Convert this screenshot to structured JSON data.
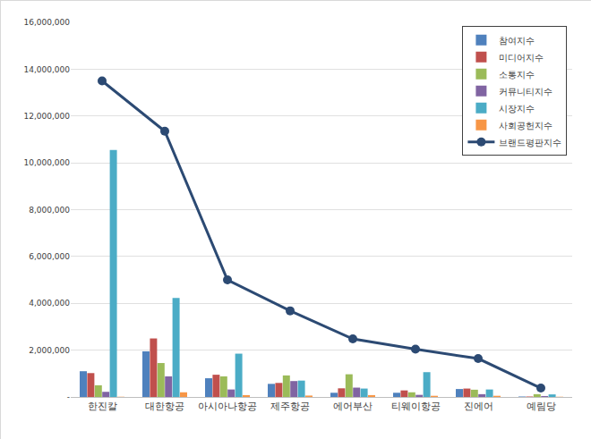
{
  "chart_data": {
    "type": "bar",
    "categories": [
      "한진칼",
      "대한항공",
      "아시아나항공",
      "제주항공",
      "에어부산",
      "티웨이항공",
      "진에어",
      "예림당"
    ],
    "series": [
      {
        "name": "참여지수",
        "type": "bar",
        "color": "#4F81BD",
        "values": [
          1100000,
          1950000,
          800000,
          560000,
          180000,
          180000,
          340000,
          20000
        ]
      },
      {
        "name": "미디어지수",
        "type": "bar",
        "color": "#C0504D",
        "values": [
          1020000,
          2500000,
          950000,
          600000,
          370000,
          280000,
          360000,
          20000
        ]
      },
      {
        "name": "소통지수",
        "type": "bar",
        "color": "#9BBB59",
        "values": [
          500000,
          1450000,
          880000,
          920000,
          970000,
          200000,
          310000,
          120000
        ]
      },
      {
        "name": "커뮤니티지수",
        "type": "bar",
        "color": "#8064A2",
        "values": [
          220000,
          880000,
          320000,
          680000,
          400000,
          90000,
          120000,
          40000
        ]
      },
      {
        "name": "시장지수",
        "type": "bar",
        "color": "#4BACC6",
        "values": [
          10550000,
          4230000,
          1850000,
          700000,
          360000,
          1060000,
          320000,
          110000
        ]
      },
      {
        "name": "사회공헌지수",
        "type": "bar",
        "color": "#F79646",
        "values": [
          10000,
          200000,
          80000,
          60000,
          80000,
          50000,
          50000,
          10000
        ]
      },
      {
        "name": "브랜드평판지수",
        "type": "line",
        "color": "#2C4A73",
        "marker": "circle",
        "line_style": "solid",
        "values": [
          13500000,
          11350000,
          5000000,
          3680000,
          2480000,
          2040000,
          1640000,
          380000
        ]
      }
    ],
    "ylim": [
      0,
      16000000
    ],
    "yticks": [
      {
        "value": 0,
        "label": "-"
      },
      {
        "value": 2000000,
        "label": "2,000,000"
      },
      {
        "value": 4000000,
        "label": "4,000,000"
      },
      {
        "value": 6000000,
        "label": "6,000,000"
      },
      {
        "value": 8000000,
        "label": "8,000,000"
      },
      {
        "value": 10000000,
        "label": "10,000,000"
      },
      {
        "value": 12000000,
        "label": "12,000,000"
      },
      {
        "value": 14000000,
        "label": "14,000,000"
      },
      {
        "value": 16000000,
        "label": "16,000,000"
      }
    ],
    "grid": true,
    "legend": "top right",
    "data_labels": false
  }
}
